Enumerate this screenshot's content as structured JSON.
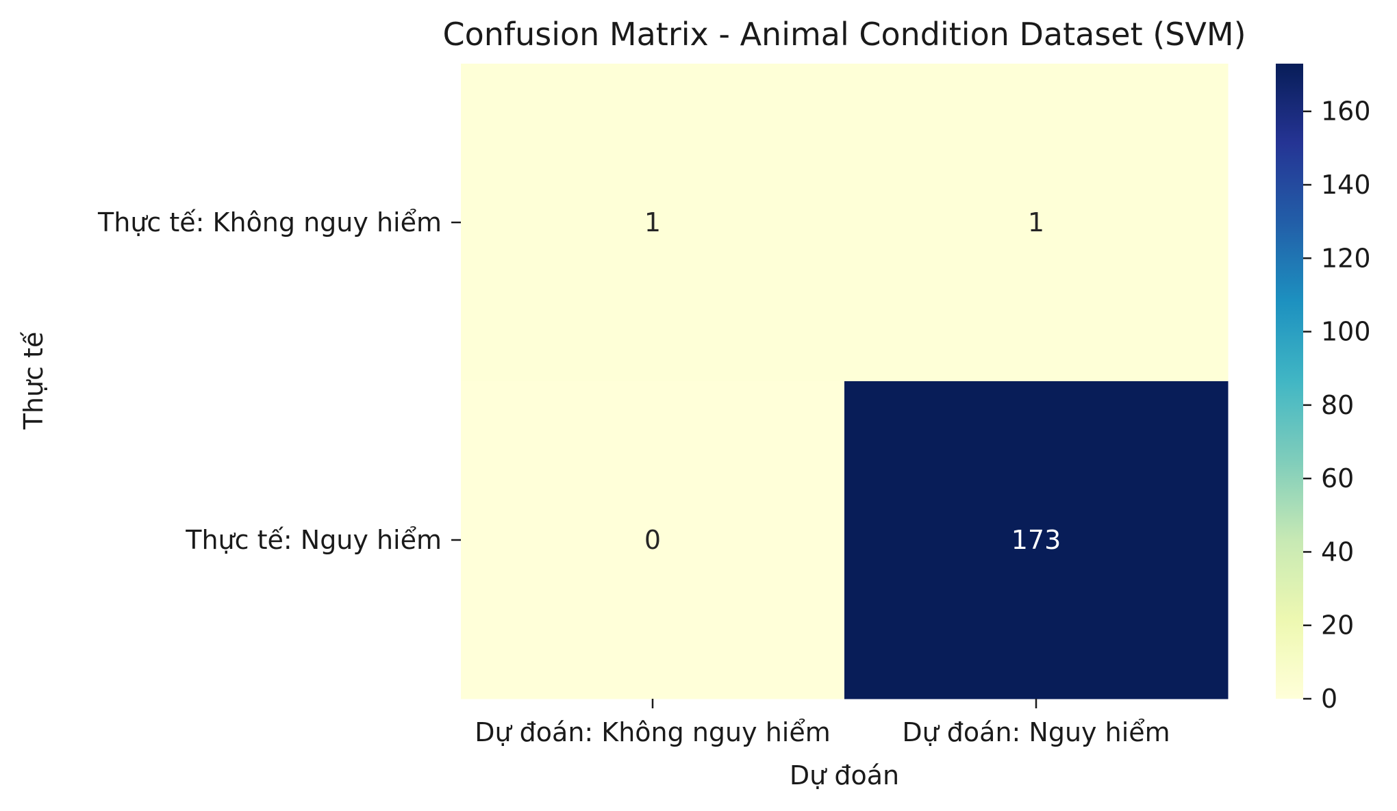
{
  "chart_data": {
    "type": "heatmap",
    "title": "Confusion Matrix - Animal Condition Dataset (SVM)",
    "xlabel": "Dự đoán",
    "ylabel": "Thực tế",
    "x_categories": [
      "Dự đoán: Không nguy hiểm",
      "Dự đoán: Nguy hiểm"
    ],
    "y_categories": [
      "Thực tế: Không nguy hiểm",
      "Thực tế: Nguy hiểm"
    ],
    "matrix": [
      [
        1,
        1
      ],
      [
        0,
        173
      ]
    ],
    "colormap": "YlGnBu",
    "colorbar": {
      "range": [
        0,
        173
      ],
      "ticks": [
        0,
        20,
        40,
        60,
        80,
        100,
        120,
        140,
        160
      ]
    },
    "annotation_colors": {
      "dark_text": "#262626",
      "light_text": "#ffffff"
    }
  }
}
